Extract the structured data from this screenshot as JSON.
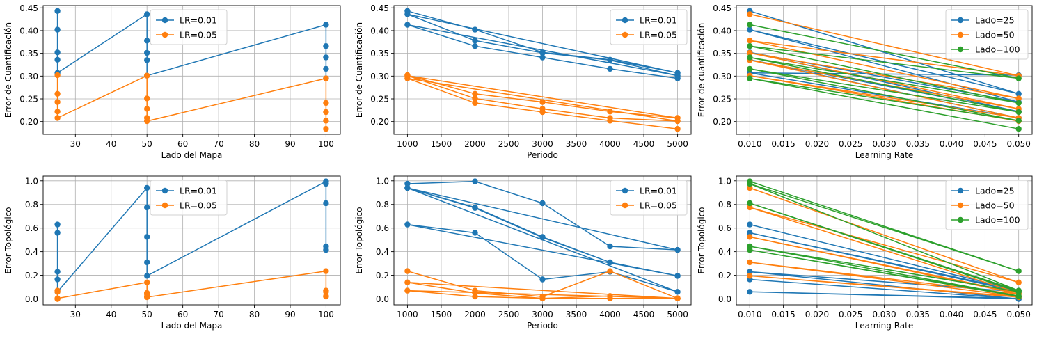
{
  "colors": {
    "lr_001": "#1f77b4",
    "lr_005": "#ff7f0e",
    "lado_100": "#2ca02c",
    "grid": "#b0b0b0"
  },
  "chart_data": [
    {
      "type": "line",
      "xlabel": "Lado del Mapa",
      "ylabel": "Error de Cuantificación",
      "xlim": [
        21,
        104
      ],
      "ylim": [
        0.172,
        0.455
      ],
      "xticks": [
        30,
        40,
        50,
        60,
        70,
        80,
        90,
        100
      ],
      "yticks": [
        0.2,
        0.25,
        0.3,
        0.35,
        0.4,
        0.45
      ],
      "grid": true,
      "legend": {
        "placement": "upper-center"
      },
      "series": [
        {
          "name": "LR=0.01",
          "color": "#1f77b4",
          "x": [
            25,
            25,
            25,
            25,
            25,
            50,
            50,
            50,
            50,
            50,
            100,
            100,
            100,
            100,
            100
          ],
          "y": [
            0.443,
            0.402,
            0.352,
            0.336,
            0.307,
            0.436,
            0.378,
            0.351,
            0.335,
            0.301,
            0.413,
            0.366,
            0.341,
            0.316,
            0.295
          ]
        },
        {
          "name": "LR=0.05",
          "color": "#ff7f0e",
          "x": [
            25,
            25,
            25,
            25,
            25,
            50,
            50,
            50,
            50,
            50,
            100,
            100,
            100,
            100,
            100
          ],
          "y": [
            0.302,
            0.261,
            0.243,
            0.222,
            0.208,
            0.301,
            0.251,
            0.228,
            0.208,
            0.201,
            0.295,
            0.241,
            0.221,
            0.202,
            0.184
          ]
        }
      ]
    },
    {
      "type": "line",
      "xlabel": "Periodo",
      "ylabel": "Error de Cuantificación",
      "xlim": [
        800,
        5200
      ],
      "ylim": [
        0.172,
        0.455
      ],
      "xticks": [
        1000,
        1500,
        2000,
        2500,
        3000,
        3500,
        4000,
        4500,
        5000
      ],
      "yticks": [
        0.2,
        0.25,
        0.3,
        0.35,
        0.4,
        0.45
      ],
      "grid": true,
      "legend": {
        "placement": "upper-right"
      },
      "series": [
        {
          "name": "LR=0.01",
          "color": "#1f77b4",
          "x": [
            1000,
            2000,
            3000,
            4000,
            5000,
            1000,
            2000,
            3000,
            4000,
            5000,
            1000,
            2000,
            3000,
            4000,
            5000
          ],
          "y": [
            0.443,
            0.402,
            0.352,
            0.336,
            0.307,
            0.436,
            0.378,
            0.351,
            0.335,
            0.301,
            0.413,
            0.366,
            0.341,
            0.316,
            0.295
          ]
        },
        {
          "name": "LR=0.05",
          "color": "#ff7f0e",
          "x": [
            1000,
            2000,
            3000,
            4000,
            5000,
            1000,
            2000,
            3000,
            4000,
            5000,
            1000,
            2000,
            3000,
            4000,
            5000
          ],
          "y": [
            0.302,
            0.261,
            0.243,
            0.222,
            0.208,
            0.301,
            0.251,
            0.228,
            0.208,
            0.201,
            0.295,
            0.241,
            0.221,
            0.202,
            0.184
          ]
        }
      ]
    },
    {
      "type": "line",
      "xlabel": "Learning Rate",
      "ylabel": "Error de cuantificación",
      "xlim": [
        0.008,
        0.052
      ],
      "ylim": [
        0.172,
        0.455
      ],
      "xticks": [
        0.01,
        0.015,
        0.02,
        0.025,
        0.03,
        0.035,
        0.04,
        0.045,
        0.05
      ],
      "yticks": [
        0.2,
        0.25,
        0.3,
        0.35,
        0.4,
        0.45
      ],
      "grid": true,
      "legend": {
        "placement": "upper-right"
      },
      "series": [
        {
          "name": "Lado=25",
          "color": "#1f77b4",
          "x": [
            0.01,
            0.05,
            0.01,
            0.05,
            0.01,
            0.05,
            0.01,
            0.05,
            0.01,
            0.05
          ],
          "y": [
            0.443,
            0.261,
            0.402,
            0.243,
            0.352,
            0.222,
            0.336,
            0.208,
            0.307,
            0.302
          ]
        },
        {
          "name": "Lado=50",
          "color": "#ff7f0e",
          "x": [
            0.01,
            0.05,
            0.01,
            0.05,
            0.01,
            0.05,
            0.01,
            0.05,
            0.01,
            0.05
          ],
          "y": [
            0.436,
            0.301,
            0.378,
            0.251,
            0.351,
            0.228,
            0.335,
            0.208,
            0.301,
            0.201
          ]
        },
        {
          "name": "Lado=100",
          "color": "#2ca02c",
          "x": [
            0.01,
            0.05,
            0.01,
            0.05,
            0.01,
            0.05,
            0.01,
            0.05,
            0.01,
            0.05
          ],
          "y": [
            0.413,
            0.295,
            0.366,
            0.241,
            0.341,
            0.221,
            0.316,
            0.202,
            0.295,
            0.184
          ]
        }
      ]
    },
    {
      "type": "line",
      "xlabel": "Lado del Mapa",
      "ylabel": "Error Topológico",
      "xlim": [
        21,
        104
      ],
      "ylim": [
        -0.05,
        1.04
      ],
      "xticks": [
        30,
        40,
        50,
        60,
        70,
        80,
        90,
        100
      ],
      "yticks": [
        0.0,
        0.2,
        0.4,
        0.6,
        0.8,
        1.0
      ],
      "grid": true,
      "legend": {
        "placement": "upper-center"
      },
      "series": [
        {
          "name": "LR=0.01",
          "color": "#1f77b4",
          "x": [
            25,
            25,
            25,
            25,
            25,
            50,
            50,
            50,
            50,
            50,
            100,
            100,
            100,
            100,
            100
          ],
          "y": [
            0.63,
            0.56,
            0.23,
            0.165,
            0.06,
            0.94,
            0.775,
            0.525,
            0.31,
            0.195,
            0.995,
            0.975,
            0.81,
            0.445,
            0.415
          ]
        },
        {
          "name": "LR=0.05",
          "color": "#ff7f0e",
          "x": [
            25,
            25,
            25,
            25,
            25,
            50,
            50,
            50,
            50,
            50,
            100,
            100,
            100,
            100,
            100
          ],
          "y": [
            0.07,
            0.06,
            0.0,
            0.0,
            0.005,
            0.14,
            0.05,
            0.04,
            0.02,
            0.015,
            0.235,
            0.07,
            0.06,
            0.025,
            0.02
          ]
        }
      ]
    },
    {
      "type": "line",
      "xlabel": "Periodo",
      "ylabel": "Error Topológico",
      "xlim": [
        800,
        5200
      ],
      "ylim": [
        -0.05,
        1.04
      ],
      "xticks": [
        1000,
        1500,
        2000,
        2500,
        3000,
        3500,
        4000,
        4500,
        5000
      ],
      "yticks": [
        0.0,
        0.2,
        0.4,
        0.6,
        0.8,
        1.0
      ],
      "grid": true,
      "legend": {
        "placement": "upper-right"
      },
      "series": [
        {
          "name": "LR=0.01",
          "color": "#1f77b4",
          "x": [
            1000,
            2000,
            3000,
            4000,
            5000,
            1000,
            2000,
            3000,
            4000,
            5000,
            1000,
            2000,
            3000,
            4000,
            5000,
            1000,
            2000,
            3000,
            4000,
            5000
          ],
          "y": [
            0.975,
            0.995,
            0.81,
            0.445,
            0.415,
            0.94,
            0.775,
            0.525,
            0.31,
            0.195,
            0.63,
            0.56,
            0.165,
            0.23,
            0.06,
            0.94,
            0.77,
            0.52,
            0.31,
            0.195
          ]
        },
        {
          "name": "LR=0.05",
          "color": "#ff7f0e",
          "x": [
            1000,
            2000,
            3000,
            4000,
            5000,
            1000,
            2000,
            3000,
            4000,
            5000,
            1000,
            2000,
            3000,
            4000,
            5000
          ],
          "y": [
            0.235,
            0.07,
            0.02,
            0.235,
            0.005,
            0.14,
            0.05,
            0.005,
            0.025,
            0.005,
            0.07,
            0.02,
            0.005,
            0.005,
            0.005
          ]
        }
      ]
    },
    {
      "type": "line",
      "xlabel": "Learning Rate",
      "ylabel": "Error Topológico",
      "xlim": [
        0.008,
        0.052
      ],
      "ylim": [
        -0.05,
        1.04
      ],
      "xticks": [
        0.01,
        0.015,
        0.02,
        0.025,
        0.03,
        0.035,
        0.04,
        0.045,
        0.05
      ],
      "yticks": [
        0.0,
        0.2,
        0.4,
        0.6,
        0.8,
        1.0
      ],
      "grid": true,
      "legend": {
        "placement": "upper-right"
      },
      "series": [
        {
          "name": "Lado=25",
          "color": "#1f77b4",
          "x": [
            0.01,
            0.05,
            0.01,
            0.05,
            0.01,
            0.05,
            0.01,
            0.05,
            0.01,
            0.05
          ],
          "y": [
            0.63,
            0.07,
            0.56,
            0.06,
            0.23,
            0.0,
            0.165,
            0.0,
            0.06,
            0.005
          ]
        },
        {
          "name": "Lado=50",
          "color": "#ff7f0e",
          "x": [
            0.01,
            0.05,
            0.01,
            0.05,
            0.01,
            0.05,
            0.01,
            0.05,
            0.01,
            0.05
          ],
          "y": [
            0.94,
            0.14,
            0.775,
            0.05,
            0.525,
            0.04,
            0.31,
            0.02,
            0.195,
            0.015
          ]
        },
        {
          "name": "Lado=100",
          "color": "#2ca02c",
          "x": [
            0.01,
            0.05,
            0.01,
            0.05,
            0.01,
            0.05,
            0.01,
            0.05,
            0.01,
            0.05
          ],
          "y": [
            0.995,
            0.235,
            0.975,
            0.07,
            0.81,
            0.06,
            0.445,
            0.025,
            0.415,
            0.02
          ]
        }
      ]
    }
  ]
}
